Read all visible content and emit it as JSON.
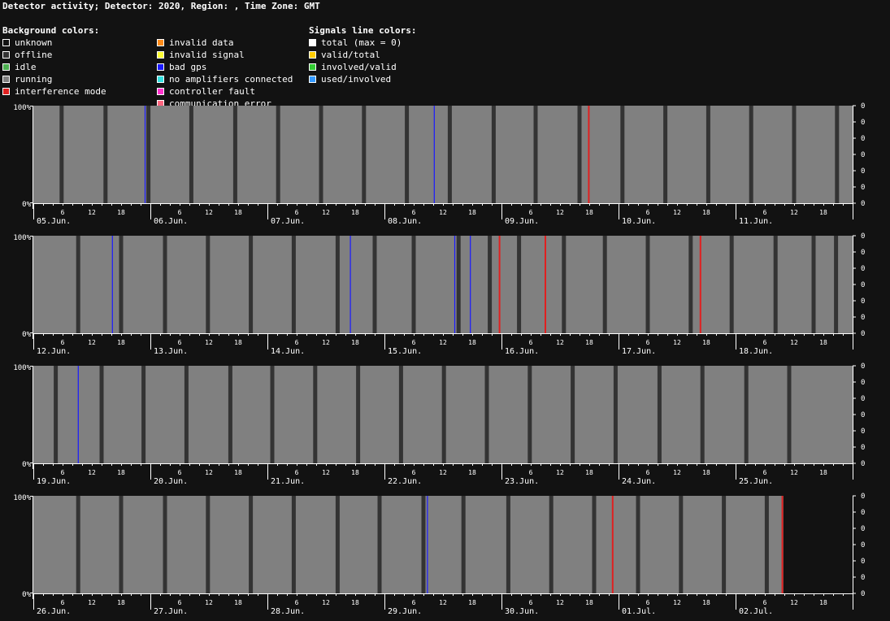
{
  "title": "Detector activity; Detector: 2020, Region: , Time Zone: GMT",
  "legend": {
    "background_heading": "Background colors:",
    "signals_heading": "Signals line colors:",
    "background": [
      {
        "label": "unknown",
        "color": "#121212"
      },
      {
        "label": "offline",
        "color": "#333333"
      },
      {
        "label": "idle",
        "color": "#4caf50"
      },
      {
        "label": "running",
        "color": "#808080"
      },
      {
        "label": "interference mode",
        "color": "#e02020"
      },
      {
        "label": "invalid data",
        "color": "#ff8c1a"
      },
      {
        "label": "invalid signal",
        "color": "#ffff33"
      },
      {
        "label": "bad gps",
        "color": "#1a1aff"
      },
      {
        "label": "no amplifiers connected",
        "color": "#33e0e0"
      },
      {
        "label": "controller fault",
        "color": "#ff33cc"
      },
      {
        "label": "communication error",
        "color": "#ff6680"
      }
    ],
    "signals": [
      {
        "label": "total (max = 0)",
        "color": "#ffffff"
      },
      {
        "label": "valid/total",
        "color": "#ffcc00"
      },
      {
        "label": "involved/valid",
        "color": "#33cc33"
      },
      {
        "label": "used/involved",
        "color": "#3399ff"
      }
    ]
  },
  "chart_data": {
    "type": "timeline",
    "y_left_labels": [
      "100%",
      "0%"
    ],
    "y_right_labels": [
      "0",
      "0",
      "0",
      "0",
      "0",
      "0",
      "0"
    ],
    "hour_ticks": [
      "6",
      "12",
      "18"
    ],
    "colors": {
      "running": "#808080",
      "offline": "#333333",
      "bad_gps": "#1a1aff",
      "interference": "#e02020",
      "axis": "#ffffff"
    },
    "rows": [
      {
        "days": [
          "05.Jun.",
          "06.Jun.",
          "07.Jun.",
          "08.Jun.",
          "09.Jun.",
          "10.Jun.",
          "11.Jun."
        ],
        "offline_hours": [
          5.8,
          14.8,
          23.6,
          32.4,
          41.4,
          50.2,
          59.0,
          67.8,
          76.6,
          85.4,
          94.4,
          103.0,
          112.0,
          120.8,
          129.6,
          138.4,
          147.2,
          156.0,
          164.8
        ],
        "bad_gps_hours": [
          22.9,
          82.2
        ],
        "interference_hours": [
          113.9
        ],
        "end_hour": 168
      },
      {
        "days": [
          "12.Jun.",
          "13.Jun.",
          "14.Jun.",
          "15.Jun.",
          "16.Jun.",
          "17.Jun.",
          "18.Jun."
        ],
        "offline_hours": [
          9.2,
          18.0,
          27.0,
          35.8,
          44.6,
          53.4,
          62.4,
          70.0,
          78.0,
          87.2,
          93.6,
          99.6,
          108.8,
          117.2,
          126.0,
          134.8,
          143.2,
          152.2,
          160.0,
          164.6
        ],
        "bad_gps_hours": [
          16.2,
          65.0,
          86.4,
          89.6
        ],
        "interference_hours": [
          95.6,
          105.0,
          136.8
        ],
        "end_hour": 168
      },
      {
        "days": [
          "19.Jun.",
          "20.Jun.",
          "21.Jun.",
          "22.Jun.",
          "23.Jun.",
          "24.Jun.",
          "25.Jun."
        ],
        "offline_hours": [
          4.6,
          14.0,
          22.6,
          31.4,
          40.4,
          49.0,
          57.8,
          66.6,
          75.4,
          84.2,
          93.0,
          101.8,
          110.6,
          119.4,
          128.4,
          137.2,
          146.2,
          155.0
        ],
        "bad_gps_hours": [
          9.2
        ],
        "interference_hours": [],
        "end_hour": 168
      },
      {
        "days": [
          "26.Jun.",
          "27.Jun.",
          "28.Jun.",
          "29.Jun.",
          "30.Jun.",
          "01.Jul.",
          "02.Jul."
        ],
        "offline_hours": [
          9.2,
          18.0,
          27.0,
          35.8,
          44.6,
          53.4,
          62.4,
          71.0,
          80.0,
          88.2,
          97.4,
          106.2,
          115.0,
          124.0,
          132.8,
          141.6,
          150.4
        ],
        "bad_gps_hours": [
          80.8
        ],
        "interference_hours": [
          118.8,
          153.6
        ],
        "end_hour": 153.8
      }
    ]
  }
}
